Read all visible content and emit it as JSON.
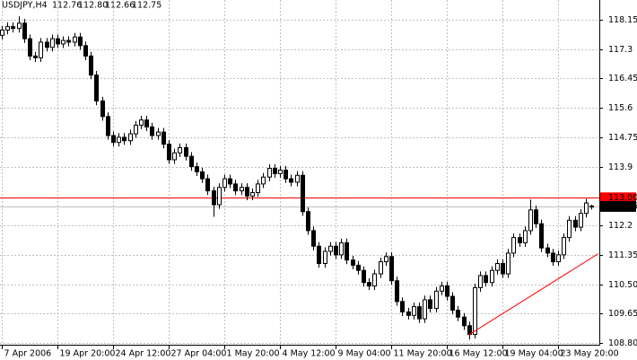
{
  "chart_data": {
    "type": "candlestick",
    "header": {
      "symbol": "USDJPY,H4",
      "ohlc": [
        "112.76",
        "112.80",
        "112.66",
        "112.75"
      ]
    },
    "categories": [
      "7 Apr 2006",
      null,
      null,
      null,
      null,
      null,
      null,
      null,
      null,
      null,
      "19 Apr 20:00",
      null,
      null,
      null,
      null,
      null,
      null,
      null,
      null,
      null,
      "24 Apr 12:00",
      null,
      null,
      null,
      null,
      null,
      null,
      null,
      null,
      null,
      "27 Apr 04:00",
      null,
      null,
      null,
      null,
      null,
      null,
      null,
      null,
      null,
      "1 May 20:00",
      null,
      null,
      null,
      null,
      null,
      null,
      null,
      null,
      null,
      "4 May 12:00",
      null,
      null,
      null,
      null,
      null,
      null,
      null,
      null,
      null,
      "9 May 04:00",
      null,
      null,
      null,
      null,
      null,
      null,
      null,
      null,
      null,
      "11 May 20:00",
      null,
      null,
      null,
      null,
      null,
      null,
      null,
      null,
      null,
      "16 May 12:00",
      null,
      null,
      null,
      null,
      null,
      null,
      null,
      null,
      null,
      "19 May 04:00",
      null,
      null,
      null,
      null,
      null,
      null,
      null,
      null,
      null,
      "23 May 20:00",
      null,
      null,
      null,
      null,
      null,
      null
    ],
    "open": [
      117.7,
      117.85,
      117.95,
      117.9,
      118.05,
      117.6,
      117.1,
      117.05,
      117.5,
      117.35,
      117.6,
      117.45,
      117.55,
      117.5,
      117.65,
      117.4,
      117.1,
      116.55,
      115.8,
      115.35,
      114.8,
      114.6,
      114.75,
      114.65,
      114.85,
      115.1,
      115.25,
      115.05,
      114.8,
      114.9,
      114.55,
      114.1,
      114.3,
      114.45,
      114.2,
      113.9,
      113.75,
      113.55,
      113.2,
      112.8,
      113.3,
      113.55,
      113.4,
      113.2,
      113.3,
      113.05,
      113.15,
      113.4,
      113.6,
      113.85,
      113.7,
      113.8,
      113.55,
      113.45,
      113.65,
      112.6,
      112.05,
      111.6,
      111.1,
      111.45,
      111.6,
      111.35,
      111.7,
      111.2,
      111.05,
      110.9,
      110.55,
      110.45,
      110.8,
      111.15,
      111.3,
      110.6,
      110.0,
      109.7,
      109.6,
      109.85,
      109.5,
      110.05,
      109.8,
      110.3,
      110.45,
      110.15,
      109.75,
      109.55,
      109.3,
      109.05,
      110.4,
      110.75,
      110.55,
      110.9,
      111.1,
      110.8,
      111.4,
      111.85,
      111.7,
      112.05,
      112.65,
      112.25,
      111.55,
      111.4,
      111.15,
      111.35,
      111.85,
      112.35,
      112.15,
      112.55,
      112.76
    ],
    "high": [
      117.97,
      118.07,
      118.07,
      118.25,
      118.17,
      117.72,
      117.22,
      117.62,
      117.62,
      117.72,
      117.72,
      117.67,
      117.67,
      117.77,
      117.77,
      117.52,
      117.22,
      116.67,
      115.92,
      115.47,
      114.92,
      114.87,
      114.87,
      114.97,
      115.22,
      115.37,
      115.37,
      115.17,
      115.02,
      115.02,
      114.67,
      114.42,
      114.57,
      114.57,
      114.32,
      114.02,
      113.87,
      113.67,
      113.32,
      113.42,
      113.67,
      113.67,
      113.52,
      113.42,
      113.42,
      113.27,
      113.52,
      113.72,
      113.97,
      113.97,
      113.92,
      113.92,
      113.67,
      113.77,
      113.77,
      112.72,
      112.17,
      111.72,
      111.57,
      111.72,
      111.72,
      111.82,
      111.82,
      111.32,
      111.17,
      111.02,
      110.67,
      110.92,
      111.27,
      111.42,
      111.42,
      110.72,
      110.12,
      109.82,
      109.97,
      109.97,
      110.17,
      110.17,
      110.42,
      110.57,
      110.57,
      110.27,
      109.87,
      109.67,
      109.42,
      110.52,
      110.87,
      110.87,
      111.02,
      111.22,
      111.22,
      111.52,
      111.97,
      111.97,
      112.17,
      112.95,
      112.77,
      112.37,
      111.67,
      111.52,
      111.47,
      111.97,
      112.47,
      112.47,
      112.67,
      112.97,
      112.8
    ],
    "low": [
      117.58,
      117.73,
      117.78,
      117.78,
      117.48,
      116.98,
      116.93,
      116.93,
      117.23,
      117.23,
      117.33,
      117.33,
      117.38,
      117.38,
      117.28,
      116.98,
      116.43,
      115.68,
      115.23,
      114.68,
      114.48,
      114.48,
      114.53,
      114.53,
      114.73,
      114.98,
      114.93,
      114.68,
      114.68,
      114.43,
      113.98,
      113.98,
      114.18,
      114.08,
      113.78,
      113.63,
      113.43,
      113.08,
      112.45,
      112.68,
      113.18,
      113.28,
      113.08,
      113.08,
      112.93,
      112.93,
      113.03,
      113.28,
      113.48,
      113.58,
      113.58,
      113.43,
      113.33,
      113.33,
      112.48,
      111.93,
      111.48,
      110.98,
      110.98,
      111.33,
      111.23,
      111.23,
      111.08,
      110.93,
      110.78,
      110.43,
      110.33,
      110.33,
      110.68,
      111.03,
      110.48,
      109.88,
      109.58,
      109.48,
      109.48,
      109.38,
      109.38,
      109.68,
      109.68,
      110.18,
      110.03,
      109.63,
      109.43,
      109.18,
      108.9,
      108.93,
      110.28,
      110.43,
      110.43,
      110.78,
      110.68,
      110.68,
      111.28,
      111.58,
      111.58,
      111.93,
      112.13,
      111.43,
      111.28,
      111.03,
      111.03,
      111.23,
      111.73,
      112.03,
      112.03,
      112.43,
      112.66
    ],
    "close": [
      117.85,
      117.95,
      117.9,
      118.05,
      117.6,
      117.1,
      117.05,
      117.5,
      117.35,
      117.6,
      117.45,
      117.55,
      117.5,
      117.65,
      117.4,
      117.1,
      116.55,
      115.8,
      115.35,
      114.8,
      114.6,
      114.75,
      114.65,
      114.85,
      115.1,
      115.25,
      115.05,
      114.8,
      114.9,
      114.55,
      114.1,
      114.3,
      114.45,
      114.2,
      113.9,
      113.75,
      113.55,
      113.2,
      112.8,
      113.3,
      113.55,
      113.4,
      113.2,
      113.3,
      113.05,
      113.15,
      113.4,
      113.6,
      113.85,
      113.7,
      113.8,
      113.55,
      113.45,
      113.65,
      112.6,
      112.05,
      111.6,
      111.1,
      111.45,
      111.6,
      111.35,
      111.7,
      111.2,
      111.05,
      110.9,
      110.55,
      110.45,
      110.8,
      111.15,
      111.3,
      110.6,
      110.0,
      109.7,
      109.6,
      109.85,
      109.5,
      110.05,
      109.8,
      110.3,
      110.45,
      110.15,
      109.75,
      109.55,
      109.3,
      109.05,
      110.4,
      110.75,
      110.55,
      110.9,
      111.1,
      110.8,
      111.4,
      111.85,
      111.7,
      112.05,
      112.65,
      112.25,
      111.55,
      111.4,
      111.15,
      111.35,
      111.85,
      112.35,
      112.15,
      112.55,
      112.85,
      112.75
    ],
    "ylim": [
      108.75,
      118.72
    ],
    "yticks": [
      118.15,
      117.3,
      116.45,
      115.6,
      114.75,
      113.9,
      112.2,
      111.35,
      {
        "value": 110.5,
        "label": "110.50"
      },
      109.65,
      {
        "value": 108.8,
        "label": "108.80"
      }
    ],
    "hlines": [
      {
        "value": 113.0,
        "label": "113.00",
        "color": "#ff0000"
      },
      {
        "value": 112.75,
        "label": "112.75",
        "color": "#c0c0c0"
      }
    ],
    "trendline": {
      "x": [
        83.9,
        107.2
      ],
      "y": [
        109.03,
        111.38
      ],
      "color": "#ff0000"
    },
    "grid": true
  }
}
